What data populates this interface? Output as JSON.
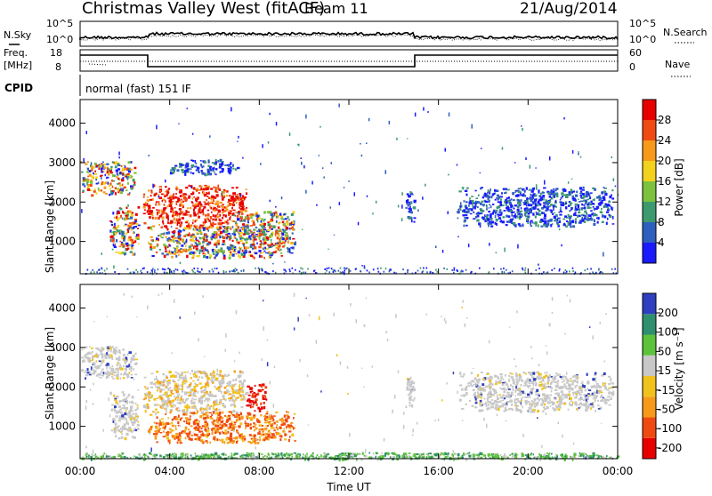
{
  "header": {
    "title": "Christmas Valley West (fitACF)",
    "beam": "Beam 11",
    "date": "21/Aug/2014"
  },
  "status_panels": {
    "nsky_label": "N.Sky",
    "nsky_ticks": [
      "10^5",
      "10^0"
    ],
    "nsearch_label": "N.Search",
    "nsearch_ticks": [
      "10^5",
      "10^0"
    ],
    "freq_label": "Freq.",
    "freq_unit": "[MHz]",
    "freq_ticks": [
      "18",
      "8"
    ],
    "nave_label": "Nave",
    "nave_ticks": [
      "60",
      "0"
    ],
    "cpid_label": "CPID",
    "cpid_value": "normal (fast) 151 IF"
  },
  "chart_data": [
    {
      "type": "heatmap",
      "name": "power",
      "ylabel": "Slant Range [km]",
      "xlabel": "Time UT",
      "x_ticks": [
        "00:00",
        "04:00",
        "08:00",
        "12:00",
        "16:00",
        "20:00",
        "00:00"
      ],
      "xlim_hours": [
        0,
        24
      ],
      "y_ticks": [
        1000,
        2000,
        3000,
        4000
      ],
      "ylim_km": [
        180,
        4600
      ],
      "colorbar": {
        "label": "Power [dB]",
        "ticks": [
          4,
          8,
          12,
          16,
          20,
          24,
          28
        ],
        "range": [
          0,
          32
        ],
        "colors": [
          "#1a1aff",
          "#2e5fbf",
          "#3c9a6e",
          "#7cc23c",
          "#f2d21c",
          "#f79a1a",
          "#f04a12",
          "#e80000"
        ]
      },
      "echo_regions": [
        {
          "t0": 0.0,
          "t1": 2.5,
          "r0": 2200,
          "r1": 3050,
          "level": "mixed"
        },
        {
          "t0": 1.3,
          "t1": 2.6,
          "r0": 700,
          "r1": 1900,
          "level": "mixed"
        },
        {
          "t0": 2.8,
          "t1": 7.4,
          "r0": 1350,
          "r1": 2450,
          "level": "strong"
        },
        {
          "t0": 3.0,
          "t1": 9.6,
          "r0": 600,
          "r1": 1400,
          "level": "mixed"
        },
        {
          "t0": 6.8,
          "t1": 9.6,
          "r0": 1100,
          "r1": 1800,
          "level": "mixed"
        },
        {
          "t0": 4.0,
          "t1": 7.0,
          "r0": 2700,
          "r1": 3100,
          "level": "weak"
        },
        {
          "t0": 14.5,
          "t1": 14.9,
          "r0": 1500,
          "r1": 2300,
          "level": "weak"
        },
        {
          "t0": 16.8,
          "t1": 23.8,
          "r0": 1400,
          "r1": 2400,
          "level": "weak"
        }
      ]
    },
    {
      "type": "heatmap",
      "name": "velocity",
      "ylabel": "Slant Range [km]",
      "xlabel": "Time UT",
      "x_ticks": [
        "00:00",
        "04:00",
        "08:00",
        "12:00",
        "16:00",
        "20:00",
        "00:00"
      ],
      "xlim_hours": [
        0,
        24
      ],
      "y_ticks": [
        1000,
        2000,
        3000,
        4000
      ],
      "ylim_km": [
        180,
        4600
      ],
      "colorbar": {
        "label": "Velocity [m s⁻¹]",
        "ticks": [
          200,
          100,
          50,
          15,
          -15,
          -50,
          -100,
          -200
        ],
        "colors": [
          "#2e3fbf",
          "#2f8f6e",
          "#5cc23c",
          "#c8c8c8",
          "#f2c21c",
          "#f79a1a",
          "#f04a12",
          "#e80000"
        ]
      },
      "echo_regions": [
        {
          "t0": 0.0,
          "t1": 2.5,
          "r0": 2200,
          "r1": 3050,
          "level": "ground"
        },
        {
          "t0": 1.3,
          "t1": 2.6,
          "r0": 700,
          "r1": 1900,
          "level": "ground"
        },
        {
          "t0": 2.8,
          "t1": 7.4,
          "r0": 1350,
          "r1": 2450,
          "level": "ground-orange"
        },
        {
          "t0": 3.0,
          "t1": 9.6,
          "r0": 600,
          "r1": 1400,
          "level": "negative"
        },
        {
          "t0": 7.4,
          "t1": 8.3,
          "r0": 1400,
          "r1": 2100,
          "level": "strong-negative"
        },
        {
          "t0": 14.5,
          "t1": 14.9,
          "r0": 1500,
          "r1": 2300,
          "level": "ground"
        },
        {
          "t0": 16.8,
          "t1": 23.8,
          "r0": 1400,
          "r1": 2400,
          "level": "ground"
        },
        {
          "t0": 0.0,
          "t1": 24.0,
          "r0": 180,
          "r1": 350,
          "level": "positive"
        }
      ]
    }
  ]
}
